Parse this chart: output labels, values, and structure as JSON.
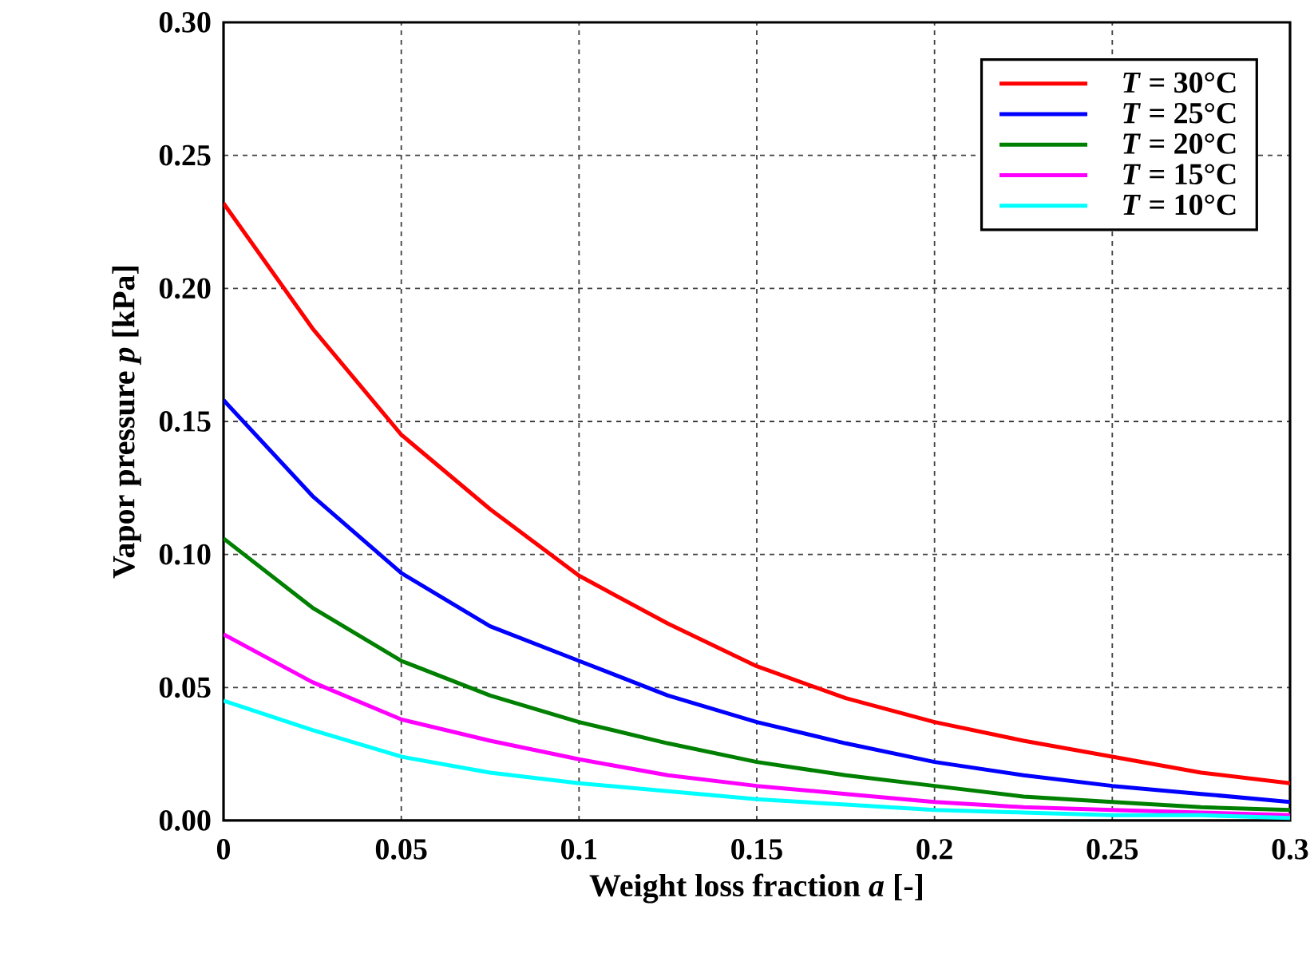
{
  "chart_data": {
    "type": "line",
    "xlabel": "Weight loss fraction *a* [-]",
    "ylabel": "Vapor pressure *p* [kPa]",
    "x": [
      0,
      0.025,
      0.05,
      0.075,
      0.1,
      0.125,
      0.15,
      0.175,
      0.2,
      0.225,
      0.25,
      0.275,
      0.3
    ],
    "series": [
      {
        "name": "*T* = 30°C",
        "color": "#ff0000",
        "values": [
          0.232,
          0.185,
          0.145,
          0.117,
          0.092,
          0.074,
          0.058,
          0.046,
          0.037,
          0.03,
          0.024,
          0.018,
          0.014
        ]
      },
      {
        "name": "*T* = 25°C",
        "color": "#0000ff",
        "values": [
          0.158,
          0.122,
          0.093,
          0.073,
          0.06,
          0.047,
          0.037,
          0.029,
          0.022,
          0.017,
          0.013,
          0.01,
          0.007
        ]
      },
      {
        "name": "*T* = 20°C",
        "color": "#008000",
        "values": [
          0.106,
          0.08,
          0.06,
          0.047,
          0.037,
          0.029,
          0.022,
          0.017,
          0.013,
          0.009,
          0.007,
          0.005,
          0.004
        ]
      },
      {
        "name": "*T* = 15°C",
        "color": "#ff00ff",
        "values": [
          0.07,
          0.052,
          0.038,
          0.03,
          0.023,
          0.017,
          0.013,
          0.01,
          0.007,
          0.005,
          0.004,
          0.003,
          0.002
        ]
      },
      {
        "name": "*T* = 10°C",
        "color": "#00ffff",
        "values": [
          0.045,
          0.034,
          0.024,
          0.018,
          0.014,
          0.011,
          0.008,
          0.006,
          0.004,
          0.003,
          0.002,
          0.002,
          0.001
        ]
      }
    ],
    "xlim": [
      0,
      0.3
    ],
    "ylim": [
      0,
      0.3
    ],
    "xticks": [
      0,
      0.05,
      0.1,
      0.15,
      0.2,
      0.25,
      0.3
    ],
    "yticks": [
      {
        "value": 0,
        "label": "0.00"
      },
      {
        "value": 0.05,
        "label": "0.05"
      },
      {
        "value": 0.1,
        "label": "0.10"
      },
      {
        "value": 0.15,
        "label": "0.15"
      },
      {
        "value": 0.2,
        "label": "0.20"
      },
      {
        "value": 0.25,
        "label": "0.25"
      },
      {
        "value": 0.3,
        "label": "0.30"
      }
    ],
    "grid": true,
    "legend": "top right",
    "line_style": "solid",
    "marker": "none"
  }
}
